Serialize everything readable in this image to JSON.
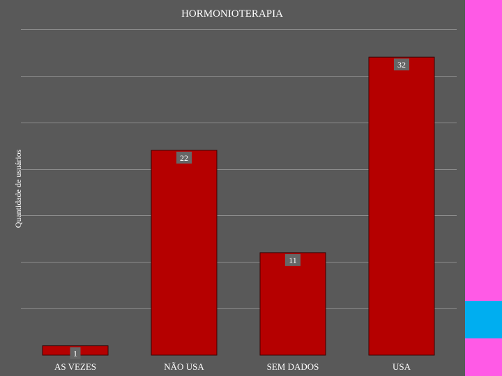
{
  "colors": {
    "page_background": "#000000",
    "plot_background": "#595959",
    "gridline": "#8c8c8c",
    "bar_fill": "#b50000",
    "bar_stroke": "#3a0000",
    "label_box": "#666666",
    "text": "#ffffff",
    "side_strip": "#ff5ae6",
    "side_block": "#00aef0"
  },
  "chart_data": {
    "type": "bar",
    "title": "HORMONIOTERAPIA",
    "xlabel": "",
    "ylabel": "Quantidade de usuários",
    "categories": [
      "AS VEZES",
      "NÃO USA",
      "SEM DADOS",
      "USA"
    ],
    "values": [
      1,
      22,
      11,
      32
    ],
    "data_labels": [
      "1",
      "22",
      "11",
      "32"
    ],
    "ylim": [
      0,
      35
    ],
    "grid": true,
    "legend": "none"
  }
}
